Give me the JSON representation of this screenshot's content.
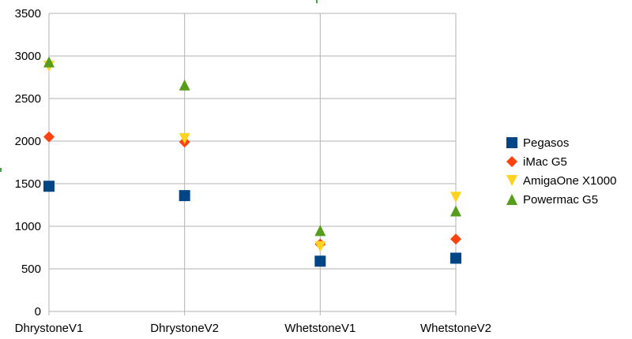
{
  "chart_data": {
    "type": "scatter",
    "categories": [
      "DhrystoneV1",
      "DhrystoneV2",
      "WhetstoneV1",
      "WhetstoneV2"
    ],
    "ylim": [
      0,
      3500
    ],
    "yticks": [
      0,
      500,
      1000,
      1500,
      2000,
      2500,
      3000,
      3500
    ],
    "grid": true,
    "legend_position": "right",
    "series": [
      {
        "name": "Pegasos",
        "marker": "square",
        "color": "#004586",
        "values": [
          1470,
          1360,
          590,
          625
        ]
      },
      {
        "name": "iMac G5",
        "marker": "diamond",
        "color": "#ff420e",
        "values": [
          2050,
          1990,
          790,
          850
        ]
      },
      {
        "name": "AmigaOne X1000",
        "marker": "triangle-down",
        "color": "#ffd320",
        "values": [
          2880,
          2030,
          760,
          1340
        ]
      },
      {
        "name": "Powermac G5",
        "marker": "triangle-up",
        "color": "#579d1c",
        "values": [
          2930,
          2660,
          950,
          1180
        ]
      }
    ]
  }
}
